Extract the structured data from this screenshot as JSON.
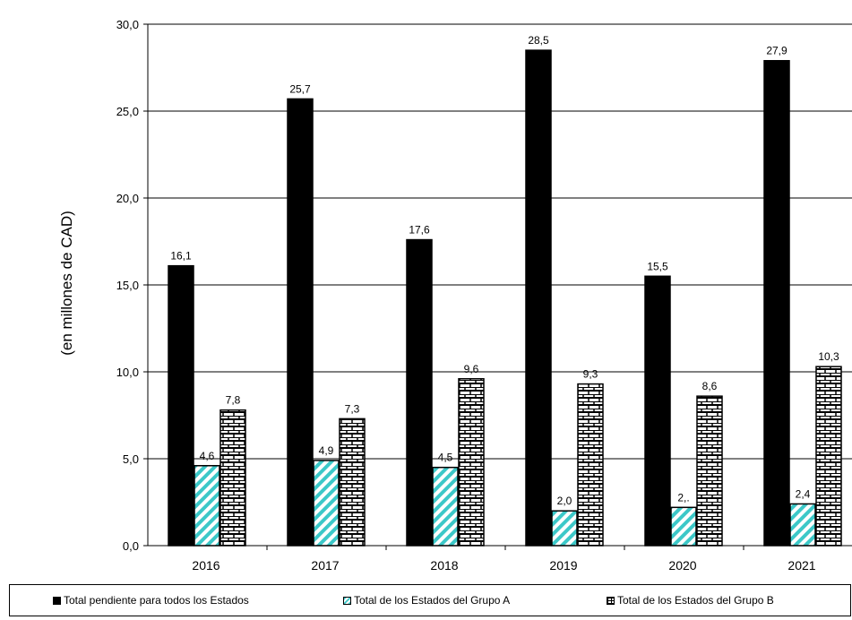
{
  "chart_data": {
    "type": "bar",
    "ylabel": "(en millones de CAD)",
    "ylim": [
      0,
      30
    ],
    "yticks": [
      "0,0",
      "5,0",
      "10,0",
      "15,0",
      "20,0",
      "25,0",
      "30,0"
    ],
    "categories": [
      "2016",
      "2017",
      "2018",
      "2019",
      "2020",
      "2021"
    ],
    "series": [
      {
        "name": "Total pendiente para todos los Estados",
        "values": [
          16.1,
          25.7,
          17.6,
          28.5,
          15.5,
          27.9
        ],
        "labels": [
          "16,1",
          "25,7",
          "17,6",
          "28,5",
          "15,5",
          "27,9"
        ]
      },
      {
        "name": "Total de los Estados del Grupo A",
        "values": [
          4.6,
          4.9,
          4.5,
          2.0,
          2.2,
          2.4
        ],
        "labels": [
          "4,6",
          "4,9",
          "4,5",
          "2,0",
          "2,.",
          "2,4"
        ]
      },
      {
        "name": "Total de los Estados del Grupo B",
        "values": [
          7.8,
          7.3,
          9.6,
          9.3,
          8.6,
          10.3
        ],
        "labels": [
          "7,8",
          "7,3",
          "9,6",
          "9,3",
          "8,6",
          "10,3"
        ]
      }
    ],
    "grid": true,
    "legend_position": "bottom"
  },
  "legend": {
    "items": [
      "Total pendiente para todos los Estados",
      "Total de los Estados del Grupo A",
      "Total de los Estados del Grupo B"
    ]
  },
  "colors": {
    "series_0": "#000000",
    "series_1_hatch": "#3cc8c8",
    "series_2_brick": "#000000"
  }
}
